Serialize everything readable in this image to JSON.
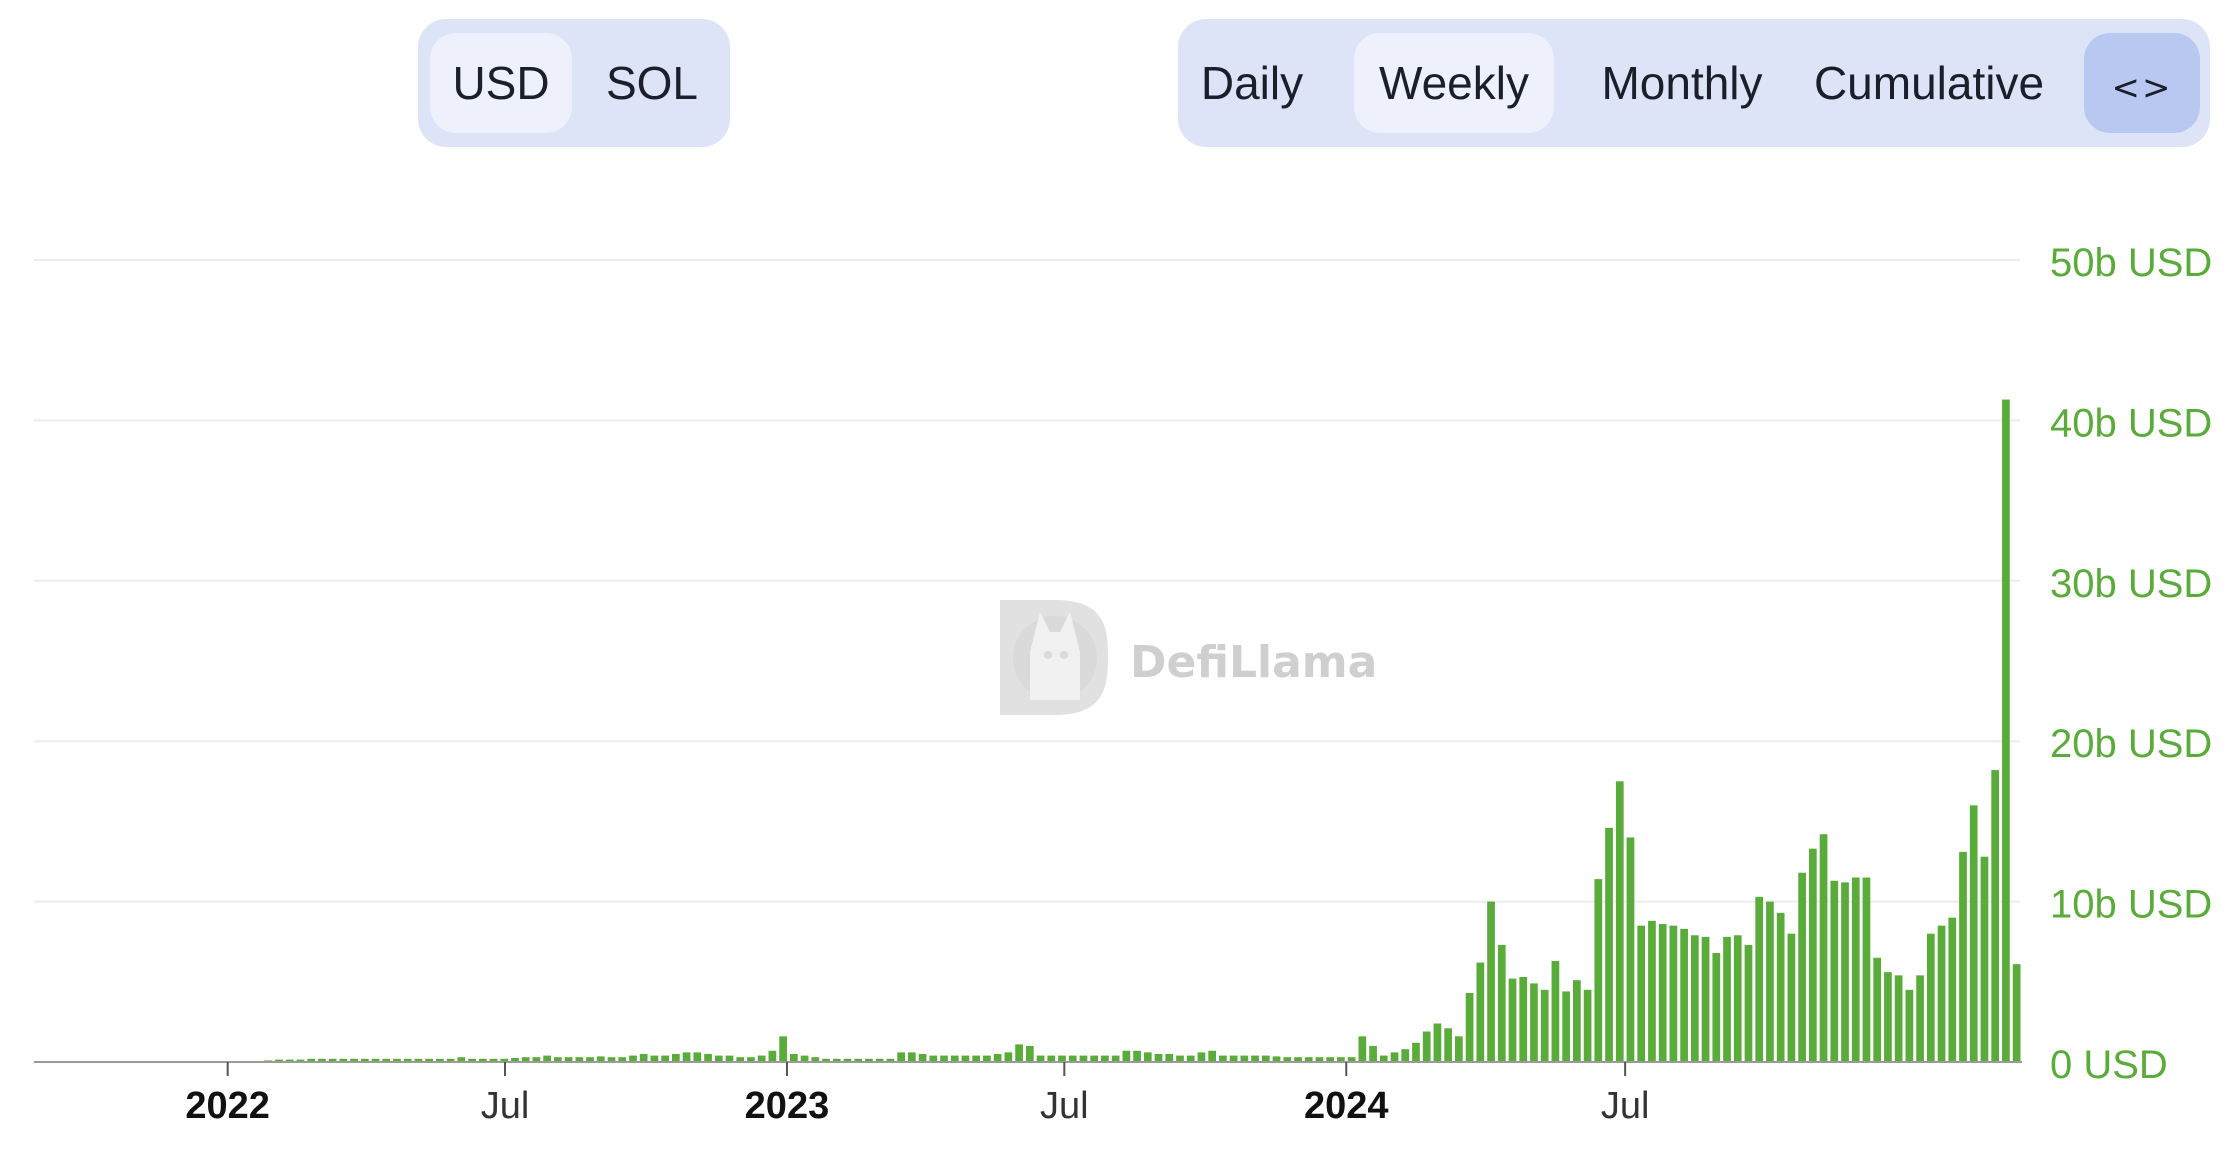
{
  "currency_toggle": {
    "options": [
      "USD",
      "SOL"
    ],
    "selected": "USD"
  },
  "interval_toggle": {
    "options": [
      "Daily",
      "Weekly",
      "Monthly",
      "Cumulative"
    ],
    "selected": "Weekly",
    "embed_icon": "code-embed-icon",
    "embed_glyph": "<>"
  },
  "watermark": "DefiLlama",
  "colors": {
    "bar": "#5aac3a",
    "axis_label": "#5aac3a",
    "toggle_bg": "#dde4f7",
    "toggle_active": "#eef1fb",
    "embed_bg": "#b9c8f1"
  },
  "chart_data": {
    "type": "bar",
    "x_start": "2021-12-27",
    "x_interval": "weekly",
    "ylim": [
      0,
      50
    ],
    "y_ticks": [
      0,
      10,
      20,
      30,
      40,
      50
    ],
    "y_tick_labels": [
      "0 USD",
      "10b USD",
      "20b USD",
      "30b USD",
      "40b USD",
      "50b USD"
    ],
    "y_unit": "b USD",
    "x_tick_labels": [
      "2022",
      "Jul",
      "2023",
      "Jul",
      "2024",
      "Jul"
    ],
    "x_ticks": [
      "2022-01-01",
      "2022-07-01",
      "2023-01-01",
      "2023-07-01",
      "2024-01-01",
      "2024-07-01"
    ],
    "x_tick_bold": [
      true,
      false,
      true,
      false,
      true,
      false
    ],
    "grid": true,
    "values": [
      0.0,
      0.0,
      0.0,
      0.0,
      0.1,
      0.15,
      0.15,
      0.15,
      0.2,
      0.2,
      0.2,
      0.2,
      0.2,
      0.2,
      0.2,
      0.2,
      0.2,
      0.2,
      0.2,
      0.2,
      0.2,
      0.2,
      0.3,
      0.2,
      0.2,
      0.2,
      0.2,
      0.25,
      0.3,
      0.3,
      0.4,
      0.3,
      0.3,
      0.3,
      0.3,
      0.35,
      0.3,
      0.3,
      0.4,
      0.5,
      0.4,
      0.4,
      0.5,
      0.6,
      0.6,
      0.5,
      0.4,
      0.4,
      0.3,
      0.3,
      0.4,
      0.7,
      1.6,
      0.5,
      0.4,
      0.3,
      0.2,
      0.2,
      0.2,
      0.2,
      0.2,
      0.2,
      0.2,
      0.6,
      0.6,
      0.5,
      0.4,
      0.4,
      0.4,
      0.4,
      0.4,
      0.4,
      0.5,
      0.6,
      1.1,
      1.0,
      0.4,
      0.4,
      0.4,
      0.4,
      0.4,
      0.4,
      0.4,
      0.4,
      0.7,
      0.7,
      0.6,
      0.5,
      0.5,
      0.4,
      0.4,
      0.6,
      0.7,
      0.4,
      0.4,
      0.4,
      0.4,
      0.4,
      0.35,
      0.3,
      0.3,
      0.3,
      0.3,
      0.3,
      0.3,
      0.3,
      1.6,
      1.0,
      0.4,
      0.6,
      0.8,
      1.2,
      1.9,
      2.4,
      2.1,
      1.6,
      4.3,
      6.2,
      10.0,
      7.3,
      5.2,
      5.3,
      4.9,
      4.5,
      6.3,
      4.4,
      5.1,
      4.5,
      11.4,
      14.6,
      17.5,
      14.0,
      8.5,
      8.8,
      8.6,
      8.5,
      8.3,
      7.9,
      7.8,
      6.8,
      7.8,
      7.9,
      7.3,
      10.3,
      10.0,
      9.3,
      8.0,
      11.8,
      13.3,
      14.2,
      11.3,
      11.2,
      11.5,
      11.5,
      6.5,
      5.6,
      5.4,
      4.5,
      5.4,
      8.0,
      8.5,
      9.0,
      13.1,
      16.0,
      12.8,
      18.2,
      41.3,
      6.1
    ]
  }
}
